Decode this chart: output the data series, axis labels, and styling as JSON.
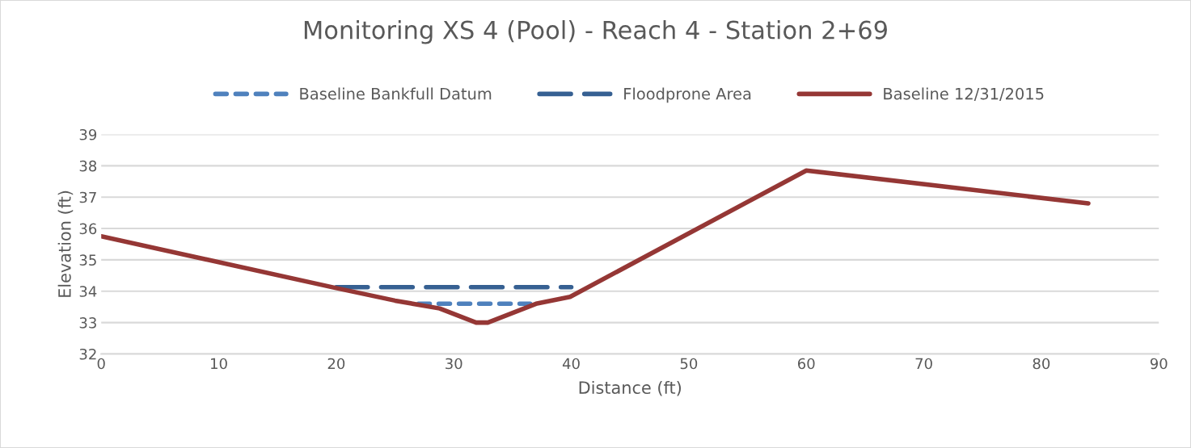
{
  "chart_data": {
    "type": "line",
    "title": "Monitoring XS 4 (Pool) - Reach 4 - Station 2+69",
    "xlabel": "Distance (ft)",
    "ylabel": "Elevation (ft)",
    "series": [
      {
        "name": "Baseline Bankfull Datum",
        "color": "#4f81bd",
        "line_style": "dotted",
        "x": [
          27,
          36.5
        ],
        "values": [
          33.6,
          33.6
        ]
      },
      {
        "name": "Floodprone Area",
        "color": "#366092",
        "line_style": "dashed",
        "x": [
          20,
          40
        ],
        "values": [
          34.13,
          34.13
        ]
      },
      {
        "name": "Baseline 12/31/2015",
        "color": "#953735",
        "line_style": "solid",
        "x": [
          0,
          20,
          25,
          28.8,
          31.9,
          32.9,
          37,
          39.9,
          60,
          84
        ],
        "values": [
          35.75,
          34.1,
          33.7,
          33.45,
          33.0,
          33.0,
          33.6,
          33.82,
          37.85,
          36.8
        ]
      }
    ],
    "xlim": [
      0,
      90
    ],
    "xticks": [
      0,
      10,
      20,
      30,
      40,
      50,
      60,
      70,
      80,
      90
    ],
    "ylim": [
      32,
      39
    ],
    "yticks": [
      32,
      33,
      34,
      35,
      36,
      37,
      38,
      39
    ],
    "grid": "y",
    "legend": "top",
    "marker": "none"
  }
}
